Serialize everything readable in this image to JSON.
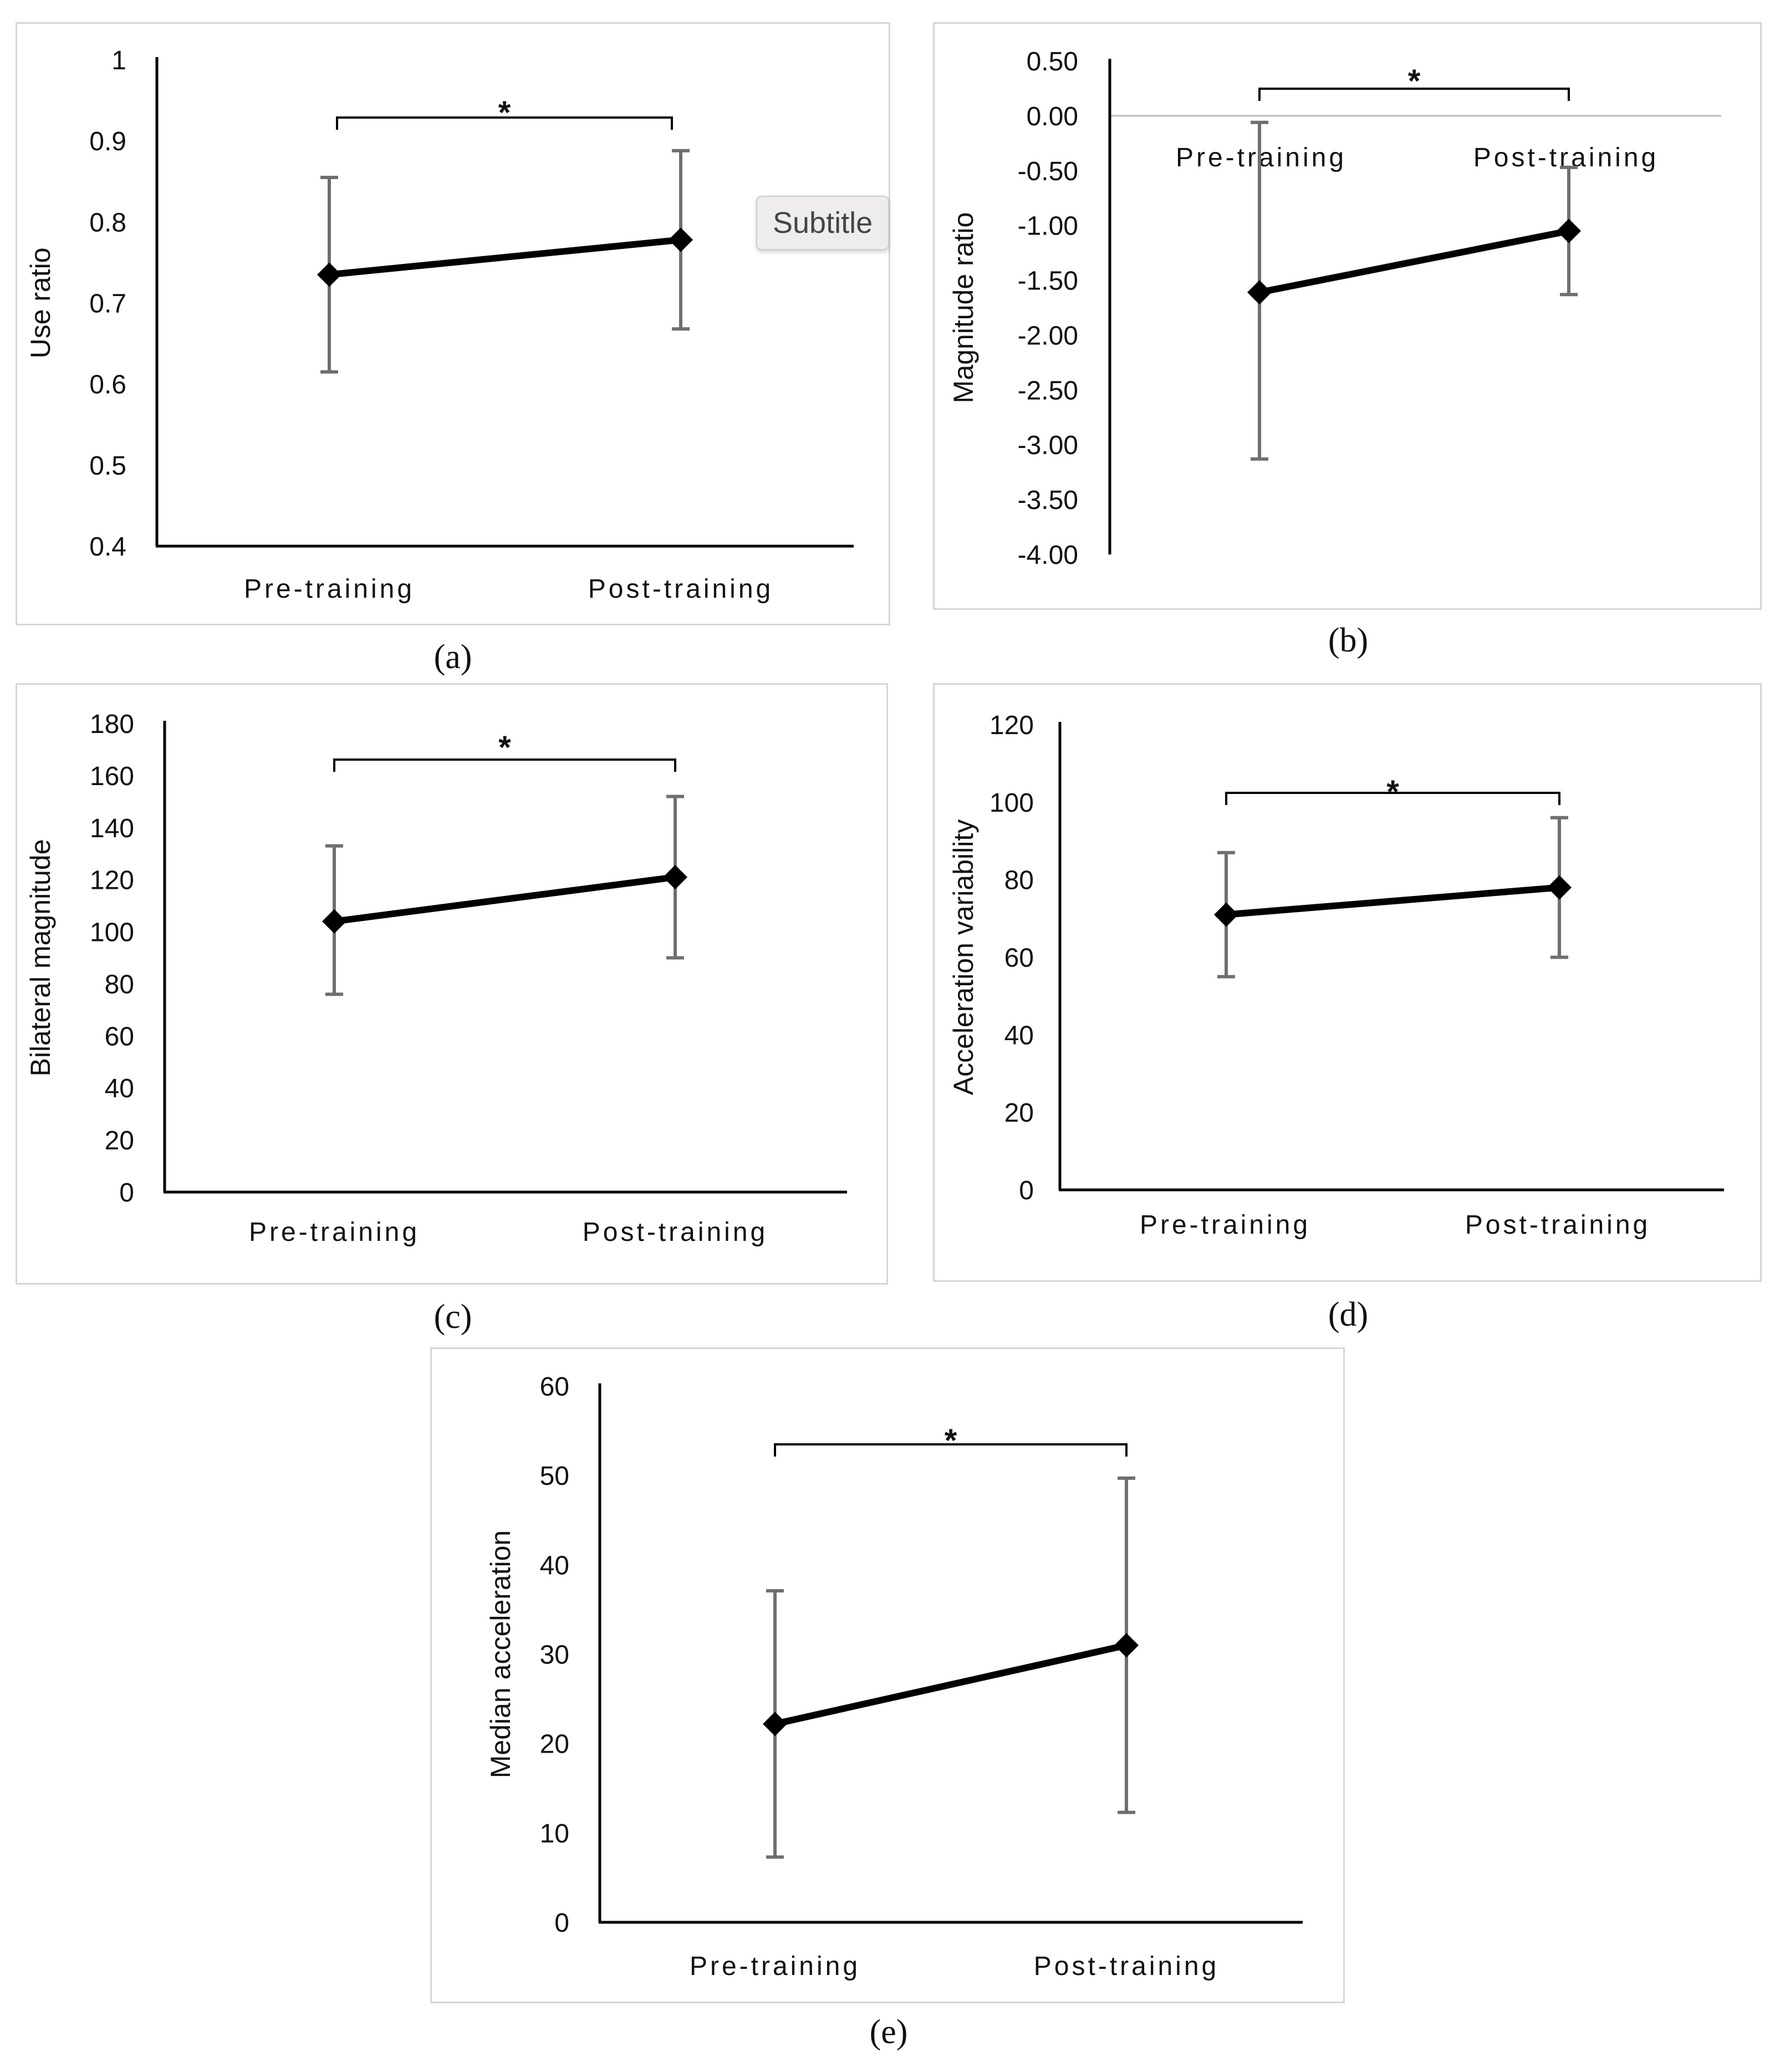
{
  "chart_data": [
    {
      "type": "line",
      "panel": "(a)",
      "categories": [
        "Pre-training",
        "Post-training"
      ],
      "values": [
        0.735,
        0.778
      ],
      "error_low": [
        0.615,
        0.668
      ],
      "error_high": [
        0.855,
        0.888
      ],
      "ylabel": "Use ratio",
      "ylim": [
        0.4,
        1.0
      ],
      "yticks": [
        "0.4",
        "0.5",
        "0.6",
        "0.7",
        "0.8",
        "0.9",
        "1"
      ],
      "significance": "*"
    },
    {
      "type": "line",
      "panel": "(b)",
      "categories": [
        "Pre-training",
        "Post-training"
      ],
      "values": [
        -1.61,
        -1.05
      ],
      "error_low": [
        -3.13,
        -1.63
      ],
      "error_high": [
        -0.06,
        -0.47
      ],
      "ylabel": "Magnitude ratio",
      "ylim": [
        -4.0,
        0.5
      ],
      "yticks": [
        "-4.00",
        "-3.50",
        "-3.00",
        "-2.50",
        "-2.00",
        "-1.50",
        "-1.00",
        "-0.50",
        "0.00",
        "0.50"
      ],
      "significance": "*"
    },
    {
      "type": "line",
      "panel": "(c)",
      "categories": [
        "Pre-training",
        "Post-training"
      ],
      "values": [
        104,
        121
      ],
      "error_low": [
        76,
        90
      ],
      "error_high": [
        133,
        152
      ],
      "ylabel": "Bilateral magnitude",
      "ylim": [
        0,
        180
      ],
      "yticks": [
        "0",
        "20",
        "40",
        "60",
        "80",
        "100",
        "120",
        "140",
        "160",
        "180"
      ],
      "significance": "*"
    },
    {
      "type": "line",
      "panel": "(d)",
      "categories": [
        "Pre-training",
        "Post-training"
      ],
      "values": [
        71,
        78
      ],
      "error_low": [
        55,
        60
      ],
      "error_high": [
        87,
        96
      ],
      "ylabel": "Acceleration variability",
      "ylim": [
        0,
        120
      ],
      "yticks": [
        "0",
        "20",
        "40",
        "60",
        "80",
        "100",
        "120"
      ],
      "significance": "*"
    },
    {
      "type": "line",
      "panel": "(e)",
      "categories": [
        "Pre-training",
        "Post-training"
      ],
      "values": [
        22.2,
        31.0
      ],
      "error_low": [
        7.3,
        12.3
      ],
      "error_high": [
        37.1,
        49.7
      ],
      "ylabel": "Median acceleration",
      "ylim": [
        0,
        60
      ],
      "yticks": [
        "0",
        "10",
        "20",
        "30",
        "40",
        "50",
        "60"
      ],
      "significance": "*"
    }
  ],
  "captions": [
    "(a)",
    "(b)",
    "(c)",
    "(d)",
    "(e)"
  ],
  "tooltip": {
    "label": "Subtitle"
  },
  "colors": {
    "line": "#000000",
    "error_bar": "#6f6f6f",
    "axis": "#000000",
    "zero_line": "#c8c8c8",
    "frame": "#d6d6d6"
  }
}
